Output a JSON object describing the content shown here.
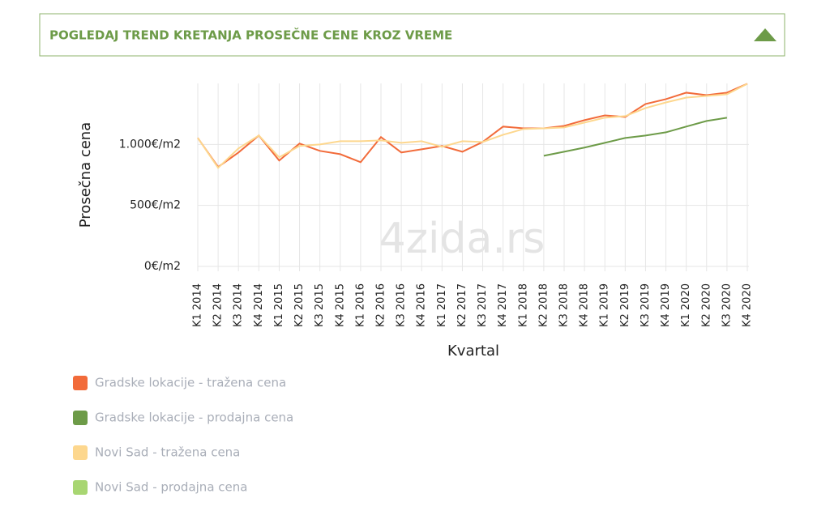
{
  "header": {
    "title": "POGLEDAJ TREND KRETANJA PROSEČNE CENE KROZ VREME"
  },
  "chart_data": {
    "type": "line",
    "watermark": "4zida.rs",
    "x_label": "Kvartal",
    "y_label": "Prosečna cena",
    "categories": [
      "K1 2014",
      "K2 2014",
      "K3 2014",
      "K4 2014",
      "K1 2015",
      "K2 2015",
      "K3 2015",
      "K4 2015",
      "K1 2016",
      "K2 2016",
      "K3 2016",
      "K4 2016",
      "K1 2017",
      "K2 2017",
      "K3 2017",
      "K4 2017",
      "K1 2018",
      "K2 2018",
      "K3 2018",
      "K4 2018",
      "K1 2019",
      "K2 2019",
      "K3 2019",
      "K4 2019",
      "K1 2020",
      "K2 2020",
      "K3 2020",
      "K4 2020"
    ],
    "ylim": [
      0,
      1500
    ],
    "yticks": [
      {
        "value": 0,
        "label": "0€/m2"
      },
      {
        "value": 500,
        "label": "500€/m2"
      },
      {
        "value": 1000,
        "label": "1.000€/m2"
      }
    ],
    "grid": true,
    "series": [
      {
        "name": "Gradske lokacije - tražena cena",
        "color": "#f26b3a",
        "values": [
          1053,
          815,
          934,
          1073,
          868,
          1007,
          947,
          920,
          854,
          1060,
          934,
          960,
          987,
          940,
          1020,
          1146,
          1132,
          1132,
          1152,
          1199,
          1238,
          1225,
          1331,
          1371,
          1424,
          1404,
          1424,
          1497
        ]
      },
      {
        "name": "Gradske lokacije - prodajna cena",
        "color": "#6d9b48",
        "values": [
          null,
          null,
          null,
          null,
          null,
          null,
          null,
          null,
          null,
          null,
          null,
          null,
          null,
          null,
          null,
          null,
          null,
          907,
          940,
          974,
          1013,
          1053,
          1073,
          1099,
          1146,
          1192,
          1219,
          null
        ]
      },
      {
        "name": "Novi Sad - tražena cena",
        "color": "#fdd78e",
        "values": [
          1053,
          808,
          967,
          1073,
          894,
          987,
          1000,
          1026,
          1026,
          1033,
          1013,
          1026,
          980,
          1026,
          1020,
          1079,
          1126,
          1132,
          1139,
          1179,
          1219,
          1232,
          1298,
          1344,
          1384,
          1397,
          1411,
          1497
        ]
      },
      {
        "name": "Novi Sad - prodajna cena",
        "color": "#a8d672",
        "values": [
          null,
          null,
          null,
          null,
          null,
          null,
          null,
          null,
          null,
          null,
          null,
          null,
          null,
          null,
          null,
          null,
          null,
          null,
          null,
          null,
          null,
          null,
          null,
          null,
          null,
          null,
          null,
          null
        ]
      }
    ]
  }
}
